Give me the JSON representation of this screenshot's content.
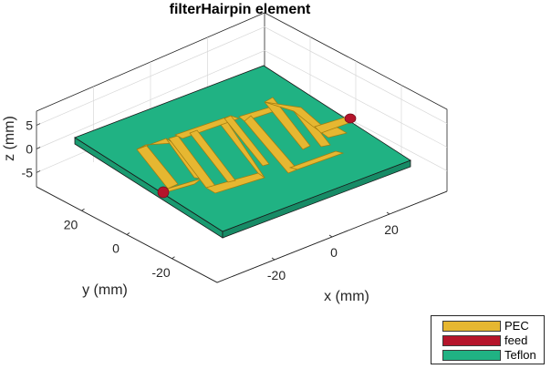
{
  "chart_data": {
    "type": "3d-surface",
    "title": "filterHairpin element",
    "xlabel": "x (mm)",
    "ylabel": "y (mm)",
    "zlabel": "z (mm)",
    "x_ticks": [
      -20,
      0,
      20
    ],
    "y_ticks": [
      -20,
      0,
      20
    ],
    "z_ticks": [
      -5,
      0,
      5
    ],
    "xlim": [
      -40,
      40
    ],
    "ylim": [
      -40,
      40
    ],
    "zlim": [
      -8,
      8
    ],
    "grid": true,
    "legend_position": "bottom-right",
    "series": [
      {
        "name": "PEC",
        "color": "#e6b731"
      },
      {
        "name": "feed",
        "color": "#b5142b"
      },
      {
        "name": "Teflon",
        "color": "#20b283"
      }
    ]
  }
}
